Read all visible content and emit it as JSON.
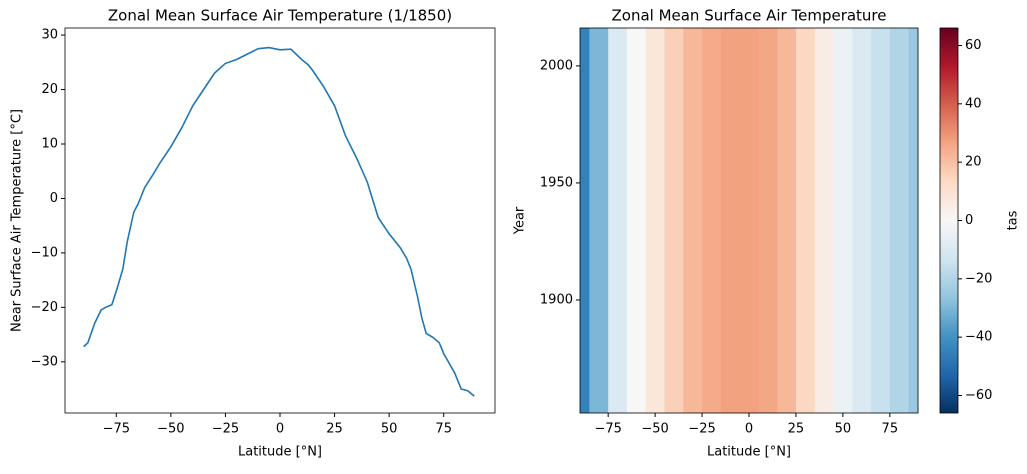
{
  "chart_data": [
    {
      "type": "line",
      "title": "Zonal Mean Surface Air Temperature (1/1850)",
      "xlabel": "Latitude [°N]",
      "ylabel": "Near Surface Air Temperature [°C]",
      "x": [
        -90,
        -88,
        -85,
        -82,
        -80,
        -77,
        -75,
        -72,
        -70,
        -67,
        -65,
        -62,
        -58,
        -55,
        -50,
        -45,
        -40,
        -35,
        -30,
        -25,
        -20,
        -15,
        -10,
        -5,
        0,
        5,
        10,
        13,
        15,
        20,
        25,
        30,
        35,
        40,
        45,
        50,
        55,
        58,
        60,
        63,
        65,
        67,
        70,
        73,
        75,
        80,
        83,
        86,
        89
      ],
      "series": [
        {
          "name": "tas",
          "color": "#1f77b4",
          "values": [
            -27.2,
            -26.5,
            -23,
            -20.5,
            -20,
            -19.5,
            -17,
            -13,
            -8,
            -2.5,
            -1,
            2,
            4.5,
            6.5,
            9.5,
            13,
            17,
            20,
            23,
            24.8,
            25.5,
            26.5,
            27.5,
            27.7,
            27.3,
            27.4,
            25.5,
            24.5,
            23.5,
            20.5,
            17,
            11.5,
            7.5,
            3,
            -3.5,
            -6.5,
            -9,
            -11,
            -13,
            -18,
            -22,
            -24.8,
            -25.5,
            -26.5,
            -28.5,
            -32,
            -35,
            -35.3,
            -36.3
          ]
        }
      ],
      "xlim": [
        -98.5,
        98.5
      ],
      "ylim": [
        -39.4,
        31.3
      ],
      "xticks": [
        {
          "value": -75,
          "label": "−75"
        },
        {
          "value": -50,
          "label": "−50"
        },
        {
          "value": -25,
          "label": "−25"
        },
        0,
        25,
        50,
        75
      ],
      "yticks": [
        {
          "value": -30,
          "label": "−30"
        },
        {
          "value": -20,
          "label": "−20"
        },
        {
          "value": -10,
          "label": "−10"
        },
        0,
        10,
        20,
        30
      ]
    },
    {
      "type": "heatmap",
      "title": "Zonal Mean Surface Air Temperature",
      "xlabel": "Latitude [°N]",
      "ylabel": "Year",
      "colorbar_label": "tas",
      "x": [
        -90,
        -80,
        -70,
        -60,
        -50,
        -40,
        -30,
        -20,
        -10,
        0,
        10,
        20,
        30,
        40,
        50,
        60,
        70,
        80,
        90
      ],
      "values": [
        -45,
        -30,
        -10,
        0,
        8,
        16,
        22,
        25,
        27,
        27,
        26,
        22,
        14,
        5,
        -4,
        -10,
        -15,
        -20,
        -25
      ],
      "xlim": [
        -90,
        90
      ],
      "ylim": [
        1851.7,
        2016.2
      ],
      "clim": [
        -66,
        66
      ],
      "colormap": [
        "#053061",
        "#2166ac",
        "#4393c3",
        "#92c5de",
        "#d1e5f0",
        "#f7f7f7",
        "#fddbc7",
        "#f4a582",
        "#d6604d",
        "#b2182b",
        "#67001f"
      ],
      "xticks": [
        {
          "value": -75,
          "label": "−75"
        },
        {
          "value": -50,
          "label": "−50"
        },
        {
          "value": -25,
          "label": "−25"
        },
        0,
        25,
        50,
        75
      ],
      "yticks": [
        1900,
        1950,
        2000
      ],
      "cticks": [
        {
          "value": -60,
          "label": "−60"
        },
        {
          "value": -40,
          "label": "−40"
        },
        {
          "value": -20,
          "label": "−20"
        },
        0,
        20,
        40,
        60
      ]
    }
  ]
}
